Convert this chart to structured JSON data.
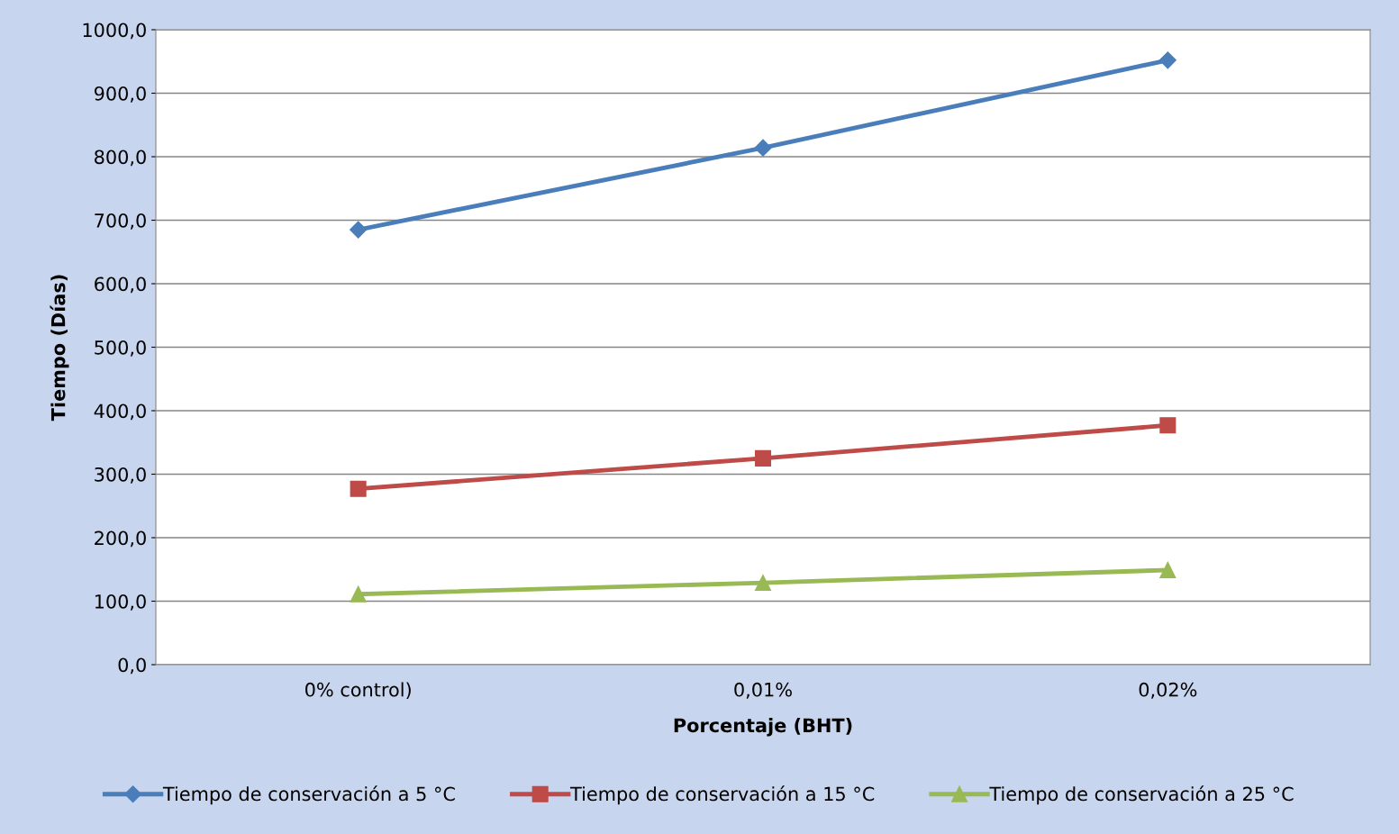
{
  "chart_data": {
    "type": "line",
    "xlabel": "Porcentaje (BHT)",
    "ylabel": "Tiempo (Días)",
    "categories": [
      "0% control)",
      "0,01%",
      "0,02%"
    ],
    "series": [
      {
        "name": "Tiempo de conservación a 5 °C",
        "color": "#4a7ebb",
        "marker": "diamond",
        "values": [
          685,
          814,
          952
        ]
      },
      {
        "name": "Tiempo de conservación a 15 °C",
        "color": "#be4b48",
        "marker": "square",
        "values": [
          277,
          325,
          377
        ]
      },
      {
        "name": "Tiempo de conservación a 25 °C",
        "color": "#98b954",
        "marker": "triangle",
        "values": [
          111,
          129,
          149
        ]
      }
    ],
    "ylim": [
      0,
      1000
    ],
    "yticks": [
      {
        "value": 0,
        "label": "0,0"
      },
      {
        "value": 100,
        "label": "100,0"
      },
      {
        "value": 200,
        "label": "200,0"
      },
      {
        "value": 300,
        "label": "300,0"
      },
      {
        "value": 400,
        "label": "400,0"
      },
      {
        "value": 500,
        "label": "500,0"
      },
      {
        "value": 600,
        "label": "600,0"
      },
      {
        "value": 700,
        "label": "700,0"
      },
      {
        "value": 800,
        "label": "800,0"
      },
      {
        "value": 900,
        "label": "900,0"
      },
      {
        "value": 1000,
        "label": "1000,0"
      }
    ],
    "grid": "y",
    "legend": "bottom",
    "line_style": "solid"
  }
}
